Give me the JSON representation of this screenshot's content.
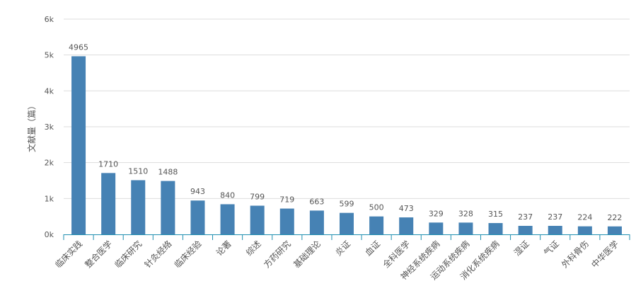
{
  "chart_data": {
    "type": "bar",
    "title": "",
    "ylabel": "文献量（篇）",
    "xlabel": "",
    "categories": [
      "临床实践",
      "整合医学",
      "临床研究",
      "针灸经络",
      "临床经验",
      "论著",
      "综述",
      "方药研究",
      "基础理论",
      "炎证",
      "血证",
      "全科医学",
      "神经系统疾病",
      "运动系统疾病",
      "消化系统疾病",
      "湿证",
      "气证",
      "外科骨伤",
      "中华医学"
    ],
    "values": [
      4965,
      1710,
      1510,
      1488,
      943,
      840,
      799,
      719,
      663,
      599,
      500,
      473,
      329,
      328,
      315,
      237,
      237,
      224,
      222
    ],
    "ylim": [
      0,
      6000
    ],
    "yticks": [
      "0k",
      "1k",
      "2k",
      "3k",
      "4k",
      "5k",
      "6k"
    ],
    "grid": true,
    "legend": "none",
    "colors": {
      "bar": "#4682b4",
      "grid": "#dddddd",
      "axis": "#1f8fb0",
      "text": "#555555"
    }
  }
}
